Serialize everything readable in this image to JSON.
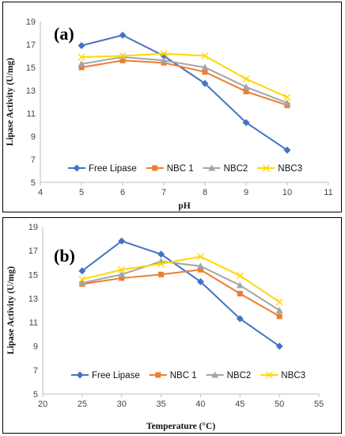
{
  "chart_data": [
    {
      "type": "line",
      "panel_label": "(a)",
      "xlabel": "pH",
      "ylabel": "Lipase Activity  (U/mg)",
      "xlim": [
        4,
        11
      ],
      "ylim": [
        5,
        19
      ],
      "xticks": [
        4,
        5,
        6,
        7,
        8,
        9,
        10,
        11
      ],
      "yticks": [
        5,
        7,
        9,
        11,
        13,
        15,
        17,
        19
      ],
      "x": [
        5,
        6,
        7,
        8,
        9,
        10
      ],
      "legend_position": "bottom",
      "series": [
        {
          "name": "Free Lipase",
          "color": "#4472C4",
          "marker": "diamond",
          "values": [
            16.9,
            17.8,
            16.0,
            13.6,
            10.2,
            7.8
          ]
        },
        {
          "name": "NBC 1",
          "color": "#ED7D31",
          "marker": "square",
          "values": [
            15.0,
            15.6,
            15.4,
            14.6,
            12.9,
            11.7
          ]
        },
        {
          "name": "NBC2",
          "color": "#A5A5A5",
          "marker": "triangle",
          "values": [
            15.3,
            15.9,
            15.6,
            15.0,
            13.3,
            11.9
          ]
        },
        {
          "name": "NBC3",
          "color": "#FFD700",
          "marker": "x",
          "values": [
            15.9,
            16.0,
            16.2,
            16.0,
            14.0,
            12.4
          ]
        }
      ]
    },
    {
      "type": "line",
      "panel_label": "(b)",
      "xlabel": "Temperature (°C)",
      "ylabel": "Lipase Activity  (U/mg)",
      "xlim": [
        20,
        55
      ],
      "ylim": [
        5,
        19
      ],
      "xticks": [
        20,
        25,
        30,
        35,
        40,
        45,
        50,
        55
      ],
      "yticks": [
        5,
        7,
        9,
        11,
        13,
        15,
        17,
        19
      ],
      "x": [
        25,
        30,
        35,
        40,
        45,
        50
      ],
      "legend_position": "bottom",
      "series": [
        {
          "name": "Free Lipase",
          "color": "#4472C4",
          "marker": "diamond",
          "values": [
            15.3,
            17.8,
            16.7,
            14.4,
            11.3,
            9.0
          ]
        },
        {
          "name": "NBC 1",
          "color": "#ED7D31",
          "marker": "square",
          "values": [
            14.2,
            14.7,
            15.0,
            15.4,
            13.4,
            11.5
          ]
        },
        {
          "name": "NBC2",
          "color": "#A5A5A5",
          "marker": "triangle",
          "values": [
            14.3,
            15.0,
            16.1,
            15.7,
            14.1,
            12.0
          ]
        },
        {
          "name": "NBC3",
          "color": "#FFD700",
          "marker": "x",
          "values": [
            14.6,
            15.4,
            15.9,
            16.5,
            14.9,
            12.7
          ]
        }
      ]
    }
  ]
}
